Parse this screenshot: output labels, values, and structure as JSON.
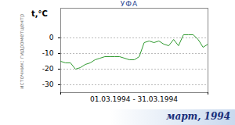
{
  "chart_data": {
    "type": "line",
    "title": "УФА",
    "subtitle": "март, 1994",
    "ylabel": "t,°C",
    "xlabel": "01.03.1994 - 31.03.1994",
    "annotations": [
      "источник: гидрометцентр"
    ],
    "x": [
      1,
      2,
      3,
      4,
      5,
      6,
      7,
      8,
      9,
      10,
      11,
      12,
      13,
      14,
      15,
      16,
      17,
      18,
      19,
      20,
      21,
      22,
      23,
      24,
      25,
      26,
      27,
      28,
      29,
      30,
      31
    ],
    "values": [
      -15,
      -16,
      -16,
      -20,
      -19,
      -17,
      -16,
      -14,
      -13,
      -12,
      -12,
      -12,
      -12,
      -13,
      -14,
      -14,
      -12,
      -3,
      -2,
      -3,
      -2,
      -4,
      -5,
      -1,
      -5,
      2,
      2,
      2,
      -1,
      -6,
      -4
    ],
    "color": "#2f9a2f",
    "xlim": [
      1,
      31
    ],
    "xticks": [
      1,
      31
    ],
    "ylim": [
      -35,
      19
    ],
    "yticks": [
      0,
      -10,
      -20,
      -30
    ],
    "grid": true,
    "tick_labels": "y"
  }
}
